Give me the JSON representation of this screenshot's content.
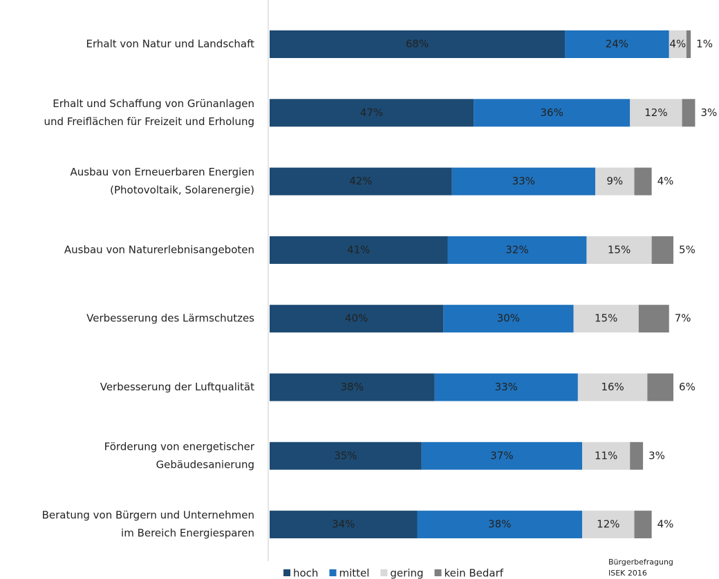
{
  "chart_data": {
    "type": "stacked-bar-horizontal",
    "categories": [
      [
        "Erhalt von Natur und Landschaft"
      ],
      [
        "Erhalt und Schaffung von Grünanlagen",
        "und Freiflächen für Freizeit und Erholung"
      ],
      [
        "Ausbau von Erneuerbaren Energien",
        "(Photovoltaik, Solarenergie)"
      ],
      [
        "Ausbau von Naturerlebnisangeboten"
      ],
      [
        "Verbesserung des Lärmschutzes"
      ],
      [
        "Verbesserung der Luftqualität"
      ],
      [
        "Förderung von energetischer",
        "Gebäudesanierung"
      ],
      [
        "Beratung von Bürgern und Unternehmen",
        "im Bereich Energiesparen"
      ]
    ],
    "series": [
      {
        "name": "hoch",
        "color": "#1c4a72",
        "values": [
          68,
          47,
          42,
          41,
          40,
          38,
          35,
          34
        ],
        "value_labels": [
          "68%",
          "47%",
          "42%",
          "41%",
          "40%",
          "38%",
          "35%",
          "34%"
        ]
      },
      {
        "name": "mittel",
        "color": "#1f72bd",
        "values": [
          24,
          36,
          33,
          32,
          30,
          33,
          37,
          38
        ],
        "value_labels": [
          "24%",
          "36%",
          "33%",
          "32%",
          "30%",
          "33%",
          "37%",
          "38%"
        ]
      },
      {
        "name": "gering",
        "color": "#d9d9d9",
        "values": [
          4,
          12,
          9,
          15,
          15,
          16,
          11,
          12
        ],
        "value_labels": [
          "4%",
          "12%",
          "9%",
          "15%",
          "15%",
          "16%",
          "11%",
          "12%"
        ]
      },
      {
        "name": "kein Bedarf",
        "color": "#7f7f7f",
        "values": [
          1,
          3,
          4,
          5,
          7,
          6,
          3,
          4
        ],
        "value_labels": [
          "1%",
          "3%",
          "4%",
          "5%",
          "7%",
          "6%",
          "3%",
          "4%"
        ]
      }
    ],
    "source": [
      "Bürgerbefragung",
      "ISEK 2016"
    ]
  }
}
